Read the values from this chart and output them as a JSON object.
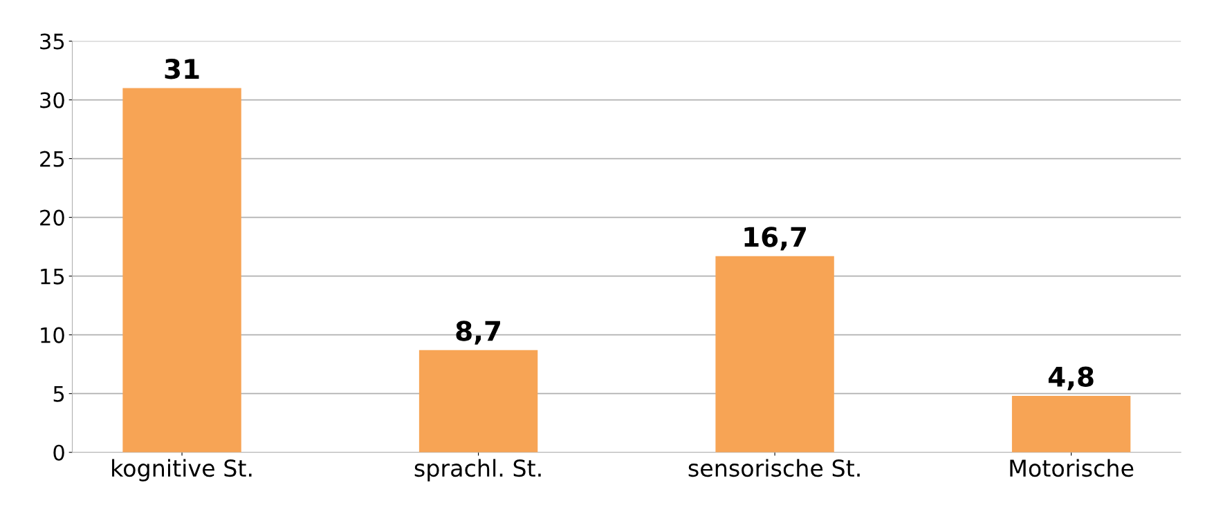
{
  "chart_data": {
    "type": "bar",
    "categories": [
      "kognitive St.",
      "sprachl. St.",
      "sensorische St.",
      "Motorische"
    ],
    "values": [
      31,
      8.7,
      16.7,
      4.8
    ],
    "value_labels": [
      "31",
      "8,7",
      "16,7",
      "4,8"
    ],
    "color": "#f7a455",
    "ylim": [
      0,
      35
    ],
    "yticks": [
      0,
      5,
      10,
      15,
      20,
      25,
      30,
      35
    ],
    "grid": "y"
  }
}
